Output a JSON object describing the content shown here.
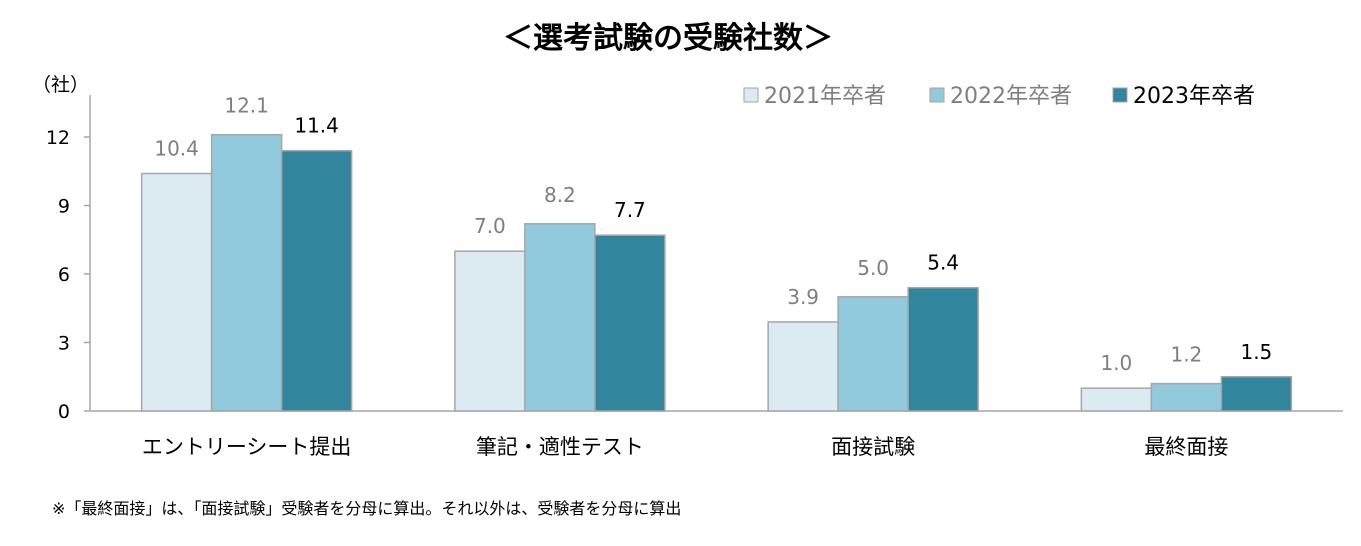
{
  "chart_data": {
    "type": "bar",
    "title": "＜選考試験の受験社数＞",
    "ylabel": "（社）",
    "xlabel": "",
    "ylim": [
      0,
      14
    ],
    "yticks": [
      0,
      3,
      6,
      9,
      12
    ],
    "grid": false,
    "legend_position": "top-right",
    "categories": [
      "エントリーシート提出",
      "筆記・適性テスト",
      "面接試験",
      "最終面接"
    ],
    "series": [
      {
        "name": "2021年卒者",
        "color": "#dcebf2",
        "label_color": "#7f7f7f",
        "values": [
          10.4,
          7.0,
          3.9,
          1.0
        ],
        "labels": [
          "10.4",
          "7.0",
          "3.9",
          "1.0"
        ]
      },
      {
        "name": "2022年卒者",
        "color": "#92cadd",
        "label_color": "#7f7f7f",
        "values": [
          12.1,
          8.2,
          5.0,
          1.2
        ],
        "labels": [
          "12.1",
          "8.2",
          "5.0",
          "1.2"
        ]
      },
      {
        "name": "2023年卒者",
        "color": "#31859c",
        "label_color": "#000000",
        "values": [
          11.4,
          7.7,
          5.4,
          1.5
        ],
        "labels": [
          "11.4",
          "7.7",
          "5.4",
          "1.5"
        ]
      }
    ],
    "annotation": "※「最終面接」は、「面接試験」受験者を分母に算出。それ以外は、受験者を分母に算出"
  }
}
